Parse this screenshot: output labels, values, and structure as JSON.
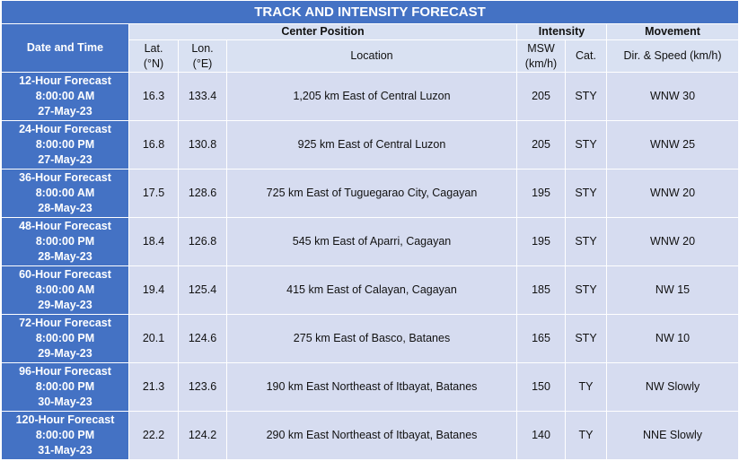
{
  "title": "TRACK AND INTENSITY FORECAST",
  "header": {
    "date_time": "Date and Time",
    "groups": [
      "Center Position",
      "Intensity",
      "Movement"
    ],
    "columns": [
      [
        "Lat.",
        "(°N)"
      ],
      [
        "Lon.",
        "(°E)"
      ],
      [
        "Location"
      ],
      [
        "MSW",
        "(km/h)"
      ],
      [
        "Cat."
      ],
      [
        "Dir. & Speed (km/h)"
      ]
    ]
  },
  "rows": [
    {
      "time": [
        "12-Hour Forecast",
        "8:00:00 AM",
        "27-May-23"
      ],
      "cells": [
        "16.3",
        "133.4",
        "1,205 km East of Central Luzon",
        "205",
        "STY",
        "WNW 30"
      ]
    },
    {
      "time": [
        "24-Hour Forecast",
        "8:00:00 PM",
        "27-May-23"
      ],
      "cells": [
        "16.8",
        "130.8",
        "925 km East of Central Luzon",
        "205",
        "STY",
        "WNW 25"
      ]
    },
    {
      "time": [
        "36-Hour Forecast",
        "8:00:00 AM",
        "28-May-23"
      ],
      "cells": [
        "17.5",
        "128.6",
        "725 km East of Tuguegarao City, Cagayan",
        "195",
        "STY",
        "WNW 20"
      ]
    },
    {
      "time": [
        "48-Hour Forecast",
        "8:00:00 PM",
        "28-May-23"
      ],
      "cells": [
        "18.4",
        "126.8",
        "545 km East of Aparri, Cagayan",
        "195",
        "STY",
        "WNW 20"
      ]
    },
    {
      "time": [
        "60-Hour Forecast",
        "8:00:00 AM",
        "29-May-23"
      ],
      "cells": [
        "19.4",
        "125.4",
        "415 km East of Calayan, Cagayan",
        "185",
        "STY",
        "NW 15"
      ]
    },
    {
      "time": [
        "72-Hour Forecast",
        "8:00:00 PM",
        "29-May-23"
      ],
      "cells": [
        "20.1",
        "124.6",
        "275 km East of Basco, Batanes",
        "165",
        "STY",
        "NW 10"
      ]
    },
    {
      "time": [
        "96-Hour Forecast",
        "8:00:00 PM",
        "30-May-23"
      ],
      "cells": [
        "21.3",
        "123.6",
        "190 km East Northeast of Itbayat, Batanes",
        "150",
        "TY",
        "NW Slowly"
      ]
    },
    {
      "time": [
        "120-Hour Forecast",
        "8:00:00 PM",
        "31-May-23"
      ],
      "cells": [
        "22.2",
        "124.2",
        "290 km East Northeast of Itbayat, Batanes",
        "140",
        "TY",
        "NNE Slowly"
      ]
    }
  ]
}
